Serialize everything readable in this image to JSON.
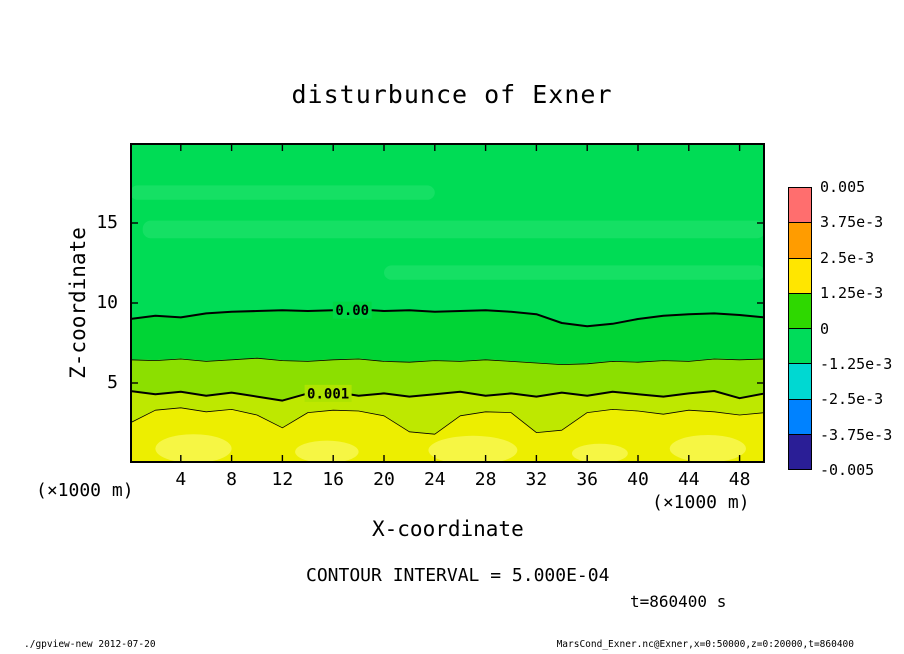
{
  "title": "disturbunce of Exner",
  "annotations": {
    "contour_interval": "CONTOUR INTERVAL = 5.000E-04",
    "time": "t=860400 s"
  },
  "footer": {
    "left": "./gpview-new  2012-07-20",
    "right": "MarsCond_Exner.nc@Exner,x=0:50000,z=0:20000,t=860400"
  },
  "colorbar": {
    "labels": [
      "0.005",
      "3.75e-3",
      "2.5e-3",
      "1.25e-3",
      "0",
      "-1.25e-3",
      "-2.5e-3",
      "-3.75e-3",
      "-0.005"
    ],
    "colors": [
      "#FF6E6E",
      "#FF9C00",
      "#FFE600",
      "#2ED800",
      "#00DC5A",
      "#00D8D2",
      "#0082FF",
      "#2A1E96"
    ]
  },
  "chart_data": {
    "type": "contour",
    "title": "disturbunce of Exner",
    "xlabel": "X-coordinate",
    "ylabel": "Z-coordinate",
    "axis_unit": "(×1000 m)",
    "x_range": [
      0,
      50
    ],
    "z_range": [
      0,
      20
    ],
    "x_ticks": [
      4,
      8,
      12,
      16,
      20,
      24,
      28,
      32,
      36,
      40,
      44,
      48
    ],
    "z_ticks": [
      5,
      10,
      15
    ],
    "contour_interval_value": 0.0005,
    "time_seconds": 860400,
    "x": [
      0,
      2,
      4,
      6,
      8,
      10,
      12,
      14,
      16,
      18,
      20,
      22,
      24,
      26,
      28,
      30,
      32,
      34,
      36,
      38,
      40,
      42,
      44,
      46,
      48,
      50
    ],
    "fill_colors": [
      "#00DC55",
      "#00D435",
      "#8CDF00",
      "#BEE800",
      "#EDEE00"
    ],
    "contours": [
      {
        "level": 0.0,
        "label": "0.00",
        "label_x": 17.5,
        "label_z": 9.55,
        "label_bg": "#00D846",
        "width": 2,
        "z": [
          9.0,
          9.2,
          9.1,
          9.35,
          9.45,
          9.5,
          9.55,
          9.5,
          9.55,
          9.6,
          9.5,
          9.55,
          9.45,
          9.5,
          9.55,
          9.45,
          9.3,
          8.75,
          8.55,
          8.7,
          9.0,
          9.2,
          9.3,
          9.35,
          9.25,
          9.1
        ]
      },
      {
        "level": 0.0005,
        "width": 0.8,
        "z": [
          6.45,
          6.4,
          6.5,
          6.35,
          6.45,
          6.55,
          6.4,
          6.35,
          6.45,
          6.5,
          6.35,
          6.3,
          6.4,
          6.35,
          6.45,
          6.35,
          6.25,
          6.15,
          6.2,
          6.35,
          6.3,
          6.4,
          6.35,
          6.5,
          6.45,
          6.5
        ]
      },
      {
        "level": 0.001,
        "label": "0.001",
        "label_x": 15.6,
        "label_z": 4.35,
        "label_bg": "#AEE400",
        "width": 2,
        "z": [
          4.5,
          4.3,
          4.45,
          4.2,
          4.4,
          4.15,
          3.9,
          4.35,
          4.45,
          4.2,
          4.35,
          4.15,
          4.3,
          4.45,
          4.2,
          4.35,
          4.15,
          4.4,
          4.2,
          4.45,
          4.3,
          4.15,
          4.35,
          4.5,
          4.05,
          4.35
        ]
      },
      {
        "level": 0.0015,
        "width": 0.8,
        "z": [
          2.5,
          3.3,
          3.45,
          3.2,
          3.35,
          3.0,
          2.2,
          3.15,
          3.3,
          3.25,
          2.95,
          1.95,
          1.8,
          2.95,
          3.2,
          3.15,
          1.9,
          2.05,
          3.15,
          3.35,
          3.25,
          3.05,
          3.3,
          3.2,
          3.0,
          3.15
        ]
      }
    ],
    "streaks": {
      "color": "#37E87E",
      "regions": [
        {
          "x0": 1,
          "x1": 50,
          "z": 14.6,
          "h": 1.1
        },
        {
          "x0": 20,
          "x1": 50,
          "z": 11.9,
          "h": 0.9
        },
        {
          "x0": 0,
          "x1": 24,
          "z": 16.9,
          "h": 0.9
        }
      ]
    },
    "patches": {
      "color": "#F8F855",
      "regions": [
        {
          "x": 5,
          "z": 0.9,
          "rx": 3,
          "rz": 0.9
        },
        {
          "x": 15.5,
          "z": 0.7,
          "rx": 2.5,
          "rz": 0.7
        },
        {
          "x": 27,
          "z": 0.8,
          "rx": 3.5,
          "rz": 0.9
        },
        {
          "x": 37,
          "z": 0.6,
          "rx": 2.2,
          "rz": 0.6
        },
        {
          "x": 45.5,
          "z": 0.9,
          "rx": 3,
          "rz": 0.85
        }
      ]
    }
  }
}
